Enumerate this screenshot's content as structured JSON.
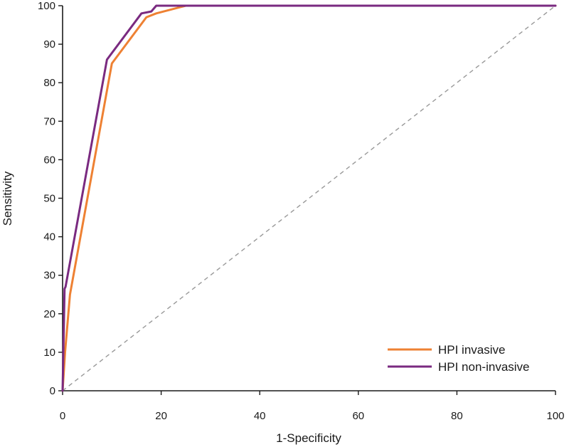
{
  "chart_data": {
    "type": "line",
    "title": "",
    "xlabel": "1-Specificity",
    "ylabel": "Sensitivity",
    "xlim": [
      0,
      100
    ],
    "ylim": [
      0,
      100
    ],
    "x_ticks": [
      0,
      20,
      40,
      60,
      80,
      100
    ],
    "y_ticks": [
      0,
      10,
      20,
      30,
      40,
      50,
      60,
      70,
      80,
      90,
      100
    ],
    "grid": false,
    "legend_position": "bottom-right",
    "reference_line": {
      "points": [
        [
          0,
          0
        ],
        [
          100,
          100
        ]
      ],
      "style": "dashed",
      "color": "#999999"
    },
    "series": [
      {
        "name": "HPI invasive",
        "color": "#ee8133",
        "x": [
          0,
          0.5,
          1.5,
          10,
          17,
          19,
          25,
          100
        ],
        "y": [
          0,
          10,
          25,
          85,
          97,
          98,
          100,
          100
        ]
      },
      {
        "name": "HPI non-invasive",
        "color": "#7a2a80",
        "x": [
          0,
          0.4,
          0.6,
          9,
          16,
          18,
          19,
          100
        ],
        "y": [
          0,
          26.5,
          27,
          86,
          98,
          98.5,
          100,
          100
        ]
      }
    ]
  }
}
